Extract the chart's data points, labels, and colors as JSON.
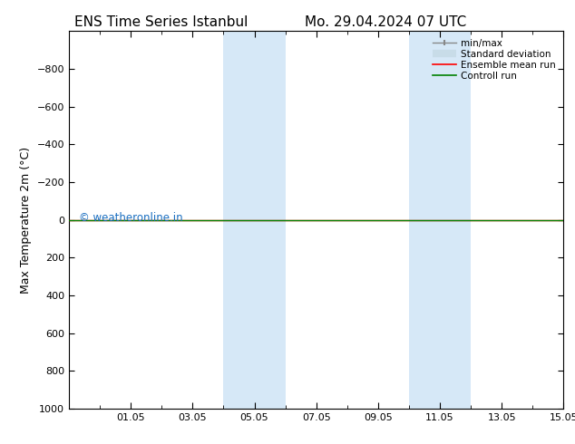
{
  "title_left": "ENS Time Series Istanbul",
  "title_right": "Mo. 29.04.2024 07 UTC",
  "ylabel": "Max Temperature 2m (°C)",
  "ylim": [
    -1000,
    1000
  ],
  "yticks": [
    -800,
    -600,
    -400,
    -200,
    0,
    200,
    400,
    600,
    800,
    1000
  ],
  "xlim": [
    0,
    16
  ],
  "xtick_labels": [
    "01.05",
    "03.05",
    "05.05",
    "07.05",
    "09.05",
    "11.05",
    "13.05",
    "15.05"
  ],
  "xtick_positions": [
    2,
    4,
    6,
    8,
    10,
    12,
    14,
    16
  ],
  "shaded_regions": [
    {
      "start": 5,
      "end": 7
    },
    {
      "start": 11,
      "end": 13
    }
  ],
  "shaded_color": "#d6e8f7",
  "watermark": "© weatheronline.in",
  "watermark_color": "#1a6ec0",
  "ensemble_mean_color": "#ff0000",
  "control_run_color": "#008000",
  "std_dev_color": "#c8dce8",
  "minmax_color": "#888888",
  "background_color": "#ffffff",
  "plot_bg_color": "#ffffff",
  "legend_items": [
    "min/max",
    "Standard deviation",
    "Ensemble mean run",
    "Controll run"
  ],
  "tick_fontsize": 8,
  "label_fontsize": 9,
  "title_fontsize": 11,
  "font_family": "DejaVu Sans"
}
